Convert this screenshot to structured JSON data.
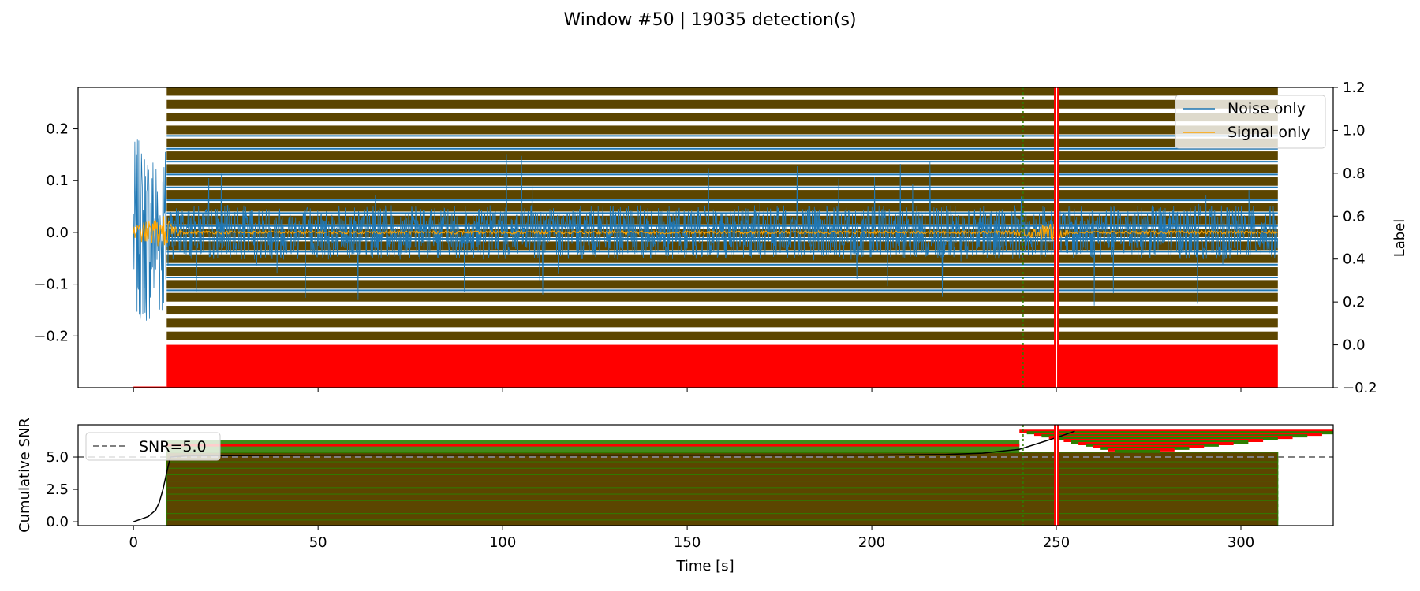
{
  "figure": {
    "title": "Window #50 | 19035 detection(s)"
  },
  "colors": {
    "noise": "#1f77b4",
    "signal": "#ffa500",
    "detection_band": "#5c4500",
    "detection_edge": "#2e7d00",
    "label_fill": "#ff0000",
    "snr_line": "#000000",
    "threshold": "#808080"
  },
  "chart_data": [
    {
      "type": "line",
      "panel": "waveform",
      "ylabel": "",
      "y2label": "Label",
      "xlim": [
        -15,
        325
      ],
      "ylim": [
        -0.3,
        0.28
      ],
      "y2lim": [
        -0.2,
        1.2
      ],
      "yticks": [
        -0.2,
        -0.1,
        0.0,
        0.1,
        0.2
      ],
      "ytick_labels": [
        "−0.2",
        "−0.1",
        "0.0",
        "0.1",
        "0.2"
      ],
      "y2ticks": [
        -0.2,
        0.0,
        0.2,
        0.4,
        0.6,
        0.8,
        1.0,
        1.2
      ],
      "y2tick_labels": [
        "−0.2",
        "0.0",
        "0.2",
        "0.4",
        "0.6",
        "0.8",
        "1.0",
        "1.2"
      ],
      "xticks": [
        0,
        50,
        100,
        150,
        200,
        250,
        300
      ],
      "legend": {
        "placement": "upper right",
        "entries": [
          "Noise only",
          "Signal only"
        ]
      },
      "series": [
        {
          "name": "Noise only",
          "x_range": [
            0,
            310
          ],
          "amplitude_start": 0.18,
          "amplitude_rest": 0.15
        },
        {
          "name": "Signal only",
          "x_range": [
            0,
            310
          ],
          "events": [
            {
              "t": 9,
              "amp": 0.035
            },
            {
              "t": 250,
              "amp": 0.02
            }
          ]
        }
      ],
      "detections": {
        "count": 19035,
        "x_start": 9,
        "x_end": 310,
        "band_levels": [
          1.18,
          1.12,
          1.06,
          1.0,
          0.94,
          0.88,
          0.82,
          0.76,
          0.7,
          0.64,
          0.58,
          0.52,
          0.46,
          0.4,
          0.34,
          0.28,
          0.22,
          0.16,
          0.1,
          0.04
        ],
        "gap_at": 250
      },
      "label_trace": {
        "off_value": -0.2,
        "on_value": 0.0,
        "on_from": 9,
        "on_to": 310
      },
      "vertical_markers": [
        241,
        250
      ]
    },
    {
      "type": "line",
      "panel": "cumulative_snr",
      "xlabel": "Time [s]",
      "ylabel": "Cumulative SNR",
      "xlim": [
        -15,
        325
      ],
      "ylim": [
        -0.3,
        7.5
      ],
      "yticks": [
        0.0,
        2.5,
        5.0
      ],
      "ytick_labels": [
        "0.0",
        "2.5",
        "5.0"
      ],
      "xticks": [
        0,
        50,
        100,
        150,
        200,
        250,
        300
      ],
      "xtick_labels": [
        "0",
        "50",
        "100",
        "150",
        "200",
        "250",
        "300"
      ],
      "threshold": {
        "value": 5.0,
        "label": "SNR=5.0"
      },
      "legend": {
        "placement": "upper left",
        "entries": [
          "SNR=5.0"
        ]
      },
      "curve": {
        "x": [
          0,
          2,
          4,
          6,
          7,
          8,
          9,
          10,
          15,
          50,
          100,
          150,
          200,
          220,
          230,
          240,
          250,
          255
        ],
        "y": [
          0.0,
          0.2,
          0.4,
          0.9,
          1.5,
          2.5,
          3.8,
          5.0,
          5.1,
          5.15,
          5.15,
          5.15,
          5.15,
          5.2,
          5.3,
          5.6,
          6.5,
          7.0
        ]
      },
      "detection_band_levels": [
        0.0,
        0.5,
        1.0,
        1.5,
        2.0,
        2.5,
        3.0,
        3.5,
        4.0,
        4.5,
        5.0
      ],
      "upper_traces": {
        "x_start": 240,
        "x_end": 330,
        "y": 7.0
      }
    }
  ]
}
